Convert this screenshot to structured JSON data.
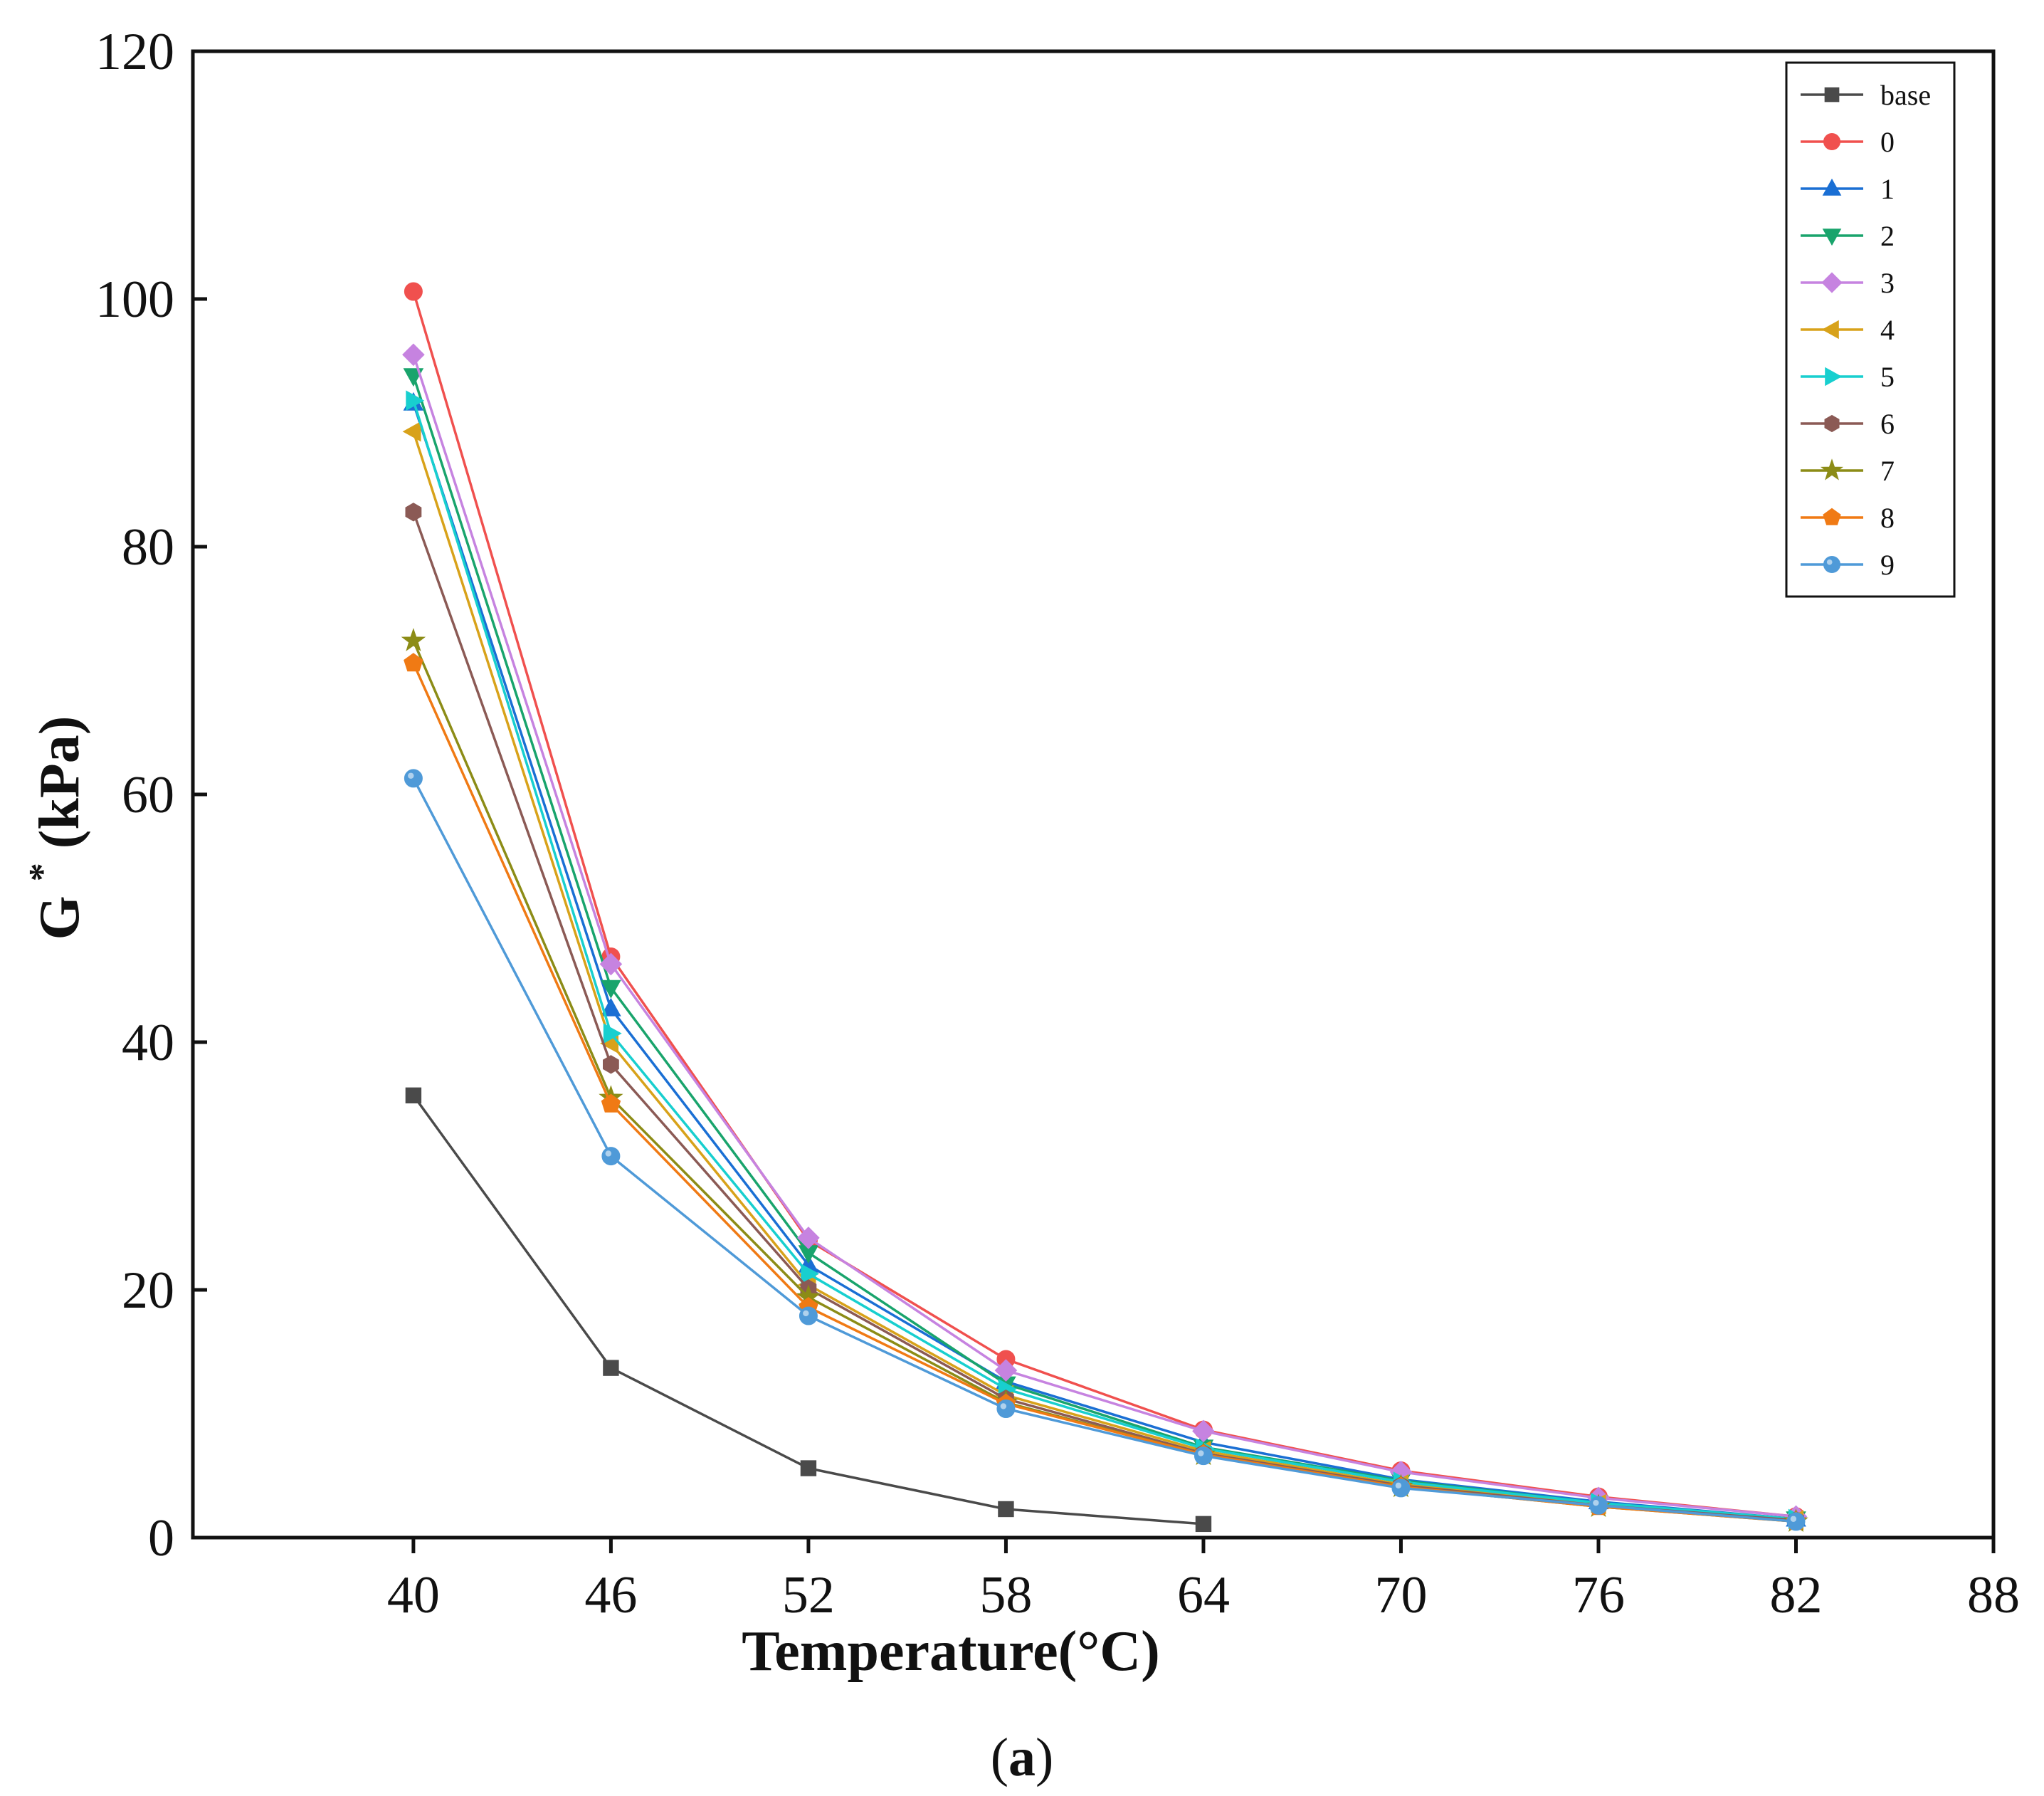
{
  "chart_data": {
    "type": "line",
    "title": "",
    "xlabel": "Temperature(°C)",
    "ylabel_main": "G",
    "ylabel_sup": "*",
    "ylabel_unit": " (kPa)",
    "caption": "(a)",
    "caption_bold": "a",
    "xlim": [
      33.3,
      88
    ],
    "ylim": [
      0,
      120
    ],
    "xticks": [
      40,
      46,
      52,
      58,
      64,
      70,
      76,
      82,
      88
    ],
    "yticks": [
      0,
      20,
      40,
      60,
      80,
      100,
      120
    ],
    "legend_position": "top-right",
    "series": [
      {
        "name": "base",
        "color": "#4a4a4a",
        "marker": "square",
        "x": [
          40,
          46,
          52,
          58,
          64
        ],
        "values": [
          35.7,
          13.7,
          5.6,
          2.3,
          1.1
        ]
      },
      {
        "name": "0",
        "color": "#f0504e",
        "marker": "circle",
        "x": [
          40,
          46,
          52,
          58,
          64,
          70,
          76,
          82
        ],
        "values": [
          100.6,
          46.9,
          24.0,
          14.4,
          8.7,
          5.4,
          3.3,
          1.7
        ]
      },
      {
        "name": "1",
        "color": "#1a6fd4",
        "marker": "triangle-up",
        "x": [
          40,
          46,
          52,
          58,
          64,
          70,
          76,
          82
        ],
        "values": [
          91.6,
          42.7,
          22.0,
          12.6,
          7.7,
          4.7,
          2.9,
          1.5
        ]
      },
      {
        "name": "2",
        "color": "#19a46c",
        "marker": "triangle-down",
        "x": [
          40,
          46,
          52,
          58,
          64,
          70,
          76,
          82
        ],
        "values": [
          93.8,
          44.4,
          23.0,
          12.4,
          7.3,
          4.6,
          2.8,
          1.5
        ]
      },
      {
        "name": "3",
        "color": "#c683e0",
        "marker": "diamond",
        "x": [
          40,
          46,
          52,
          58,
          64,
          70,
          76,
          82
        ],
        "values": [
          95.5,
          46.3,
          24.2,
          13.5,
          8.6,
          5.3,
          3.2,
          1.7
        ]
      },
      {
        "name": "4",
        "color": "#d8a21a",
        "marker": "triangle-left",
        "x": [
          40,
          46,
          52,
          58,
          64,
          70,
          76,
          82
        ],
        "values": [
          89.3,
          39.9,
          20.4,
          11.5,
          7.0,
          4.3,
          2.7,
          1.4
        ]
      },
      {
        "name": "5",
        "color": "#18cfcf",
        "marker": "triangle-right",
        "x": [
          40,
          46,
          52,
          58,
          64,
          70,
          76,
          82
        ],
        "values": [
          91.8,
          40.7,
          21.3,
          12.0,
          7.2,
          4.5,
          2.8,
          1.5
        ]
      },
      {
        "name": "6",
        "color": "#8b5a55",
        "marker": "hexagon",
        "x": [
          40,
          46,
          52,
          58,
          64,
          70,
          76,
          82
        ],
        "values": [
          82.8,
          38.2,
          20.1,
          11.2,
          6.8,
          4.2,
          2.6,
          1.4
        ]
      },
      {
        "name": "7",
        "color": "#8c8c16",
        "marker": "star",
        "x": [
          40,
          46,
          52,
          58,
          64,
          70,
          76,
          82
        ],
        "values": [
          72.4,
          35.5,
          19.4,
          10.9,
          6.7,
          4.1,
          2.5,
          1.3
        ]
      },
      {
        "name": "8",
        "color": "#f07a14",
        "marker": "pentagon",
        "x": [
          40,
          46,
          52,
          58,
          64,
          70,
          76,
          82
        ],
        "values": [
          70.6,
          35.0,
          18.6,
          10.8,
          6.7,
          4.1,
          2.5,
          1.3
        ]
      },
      {
        "name": "9",
        "color": "#4f9ad8",
        "marker": "ball",
        "x": [
          40,
          46,
          52,
          58,
          64,
          70,
          76,
          82
        ],
        "values": [
          61.3,
          30.8,
          17.9,
          10.4,
          6.6,
          4.0,
          2.6,
          1.3
        ]
      }
    ]
  }
}
